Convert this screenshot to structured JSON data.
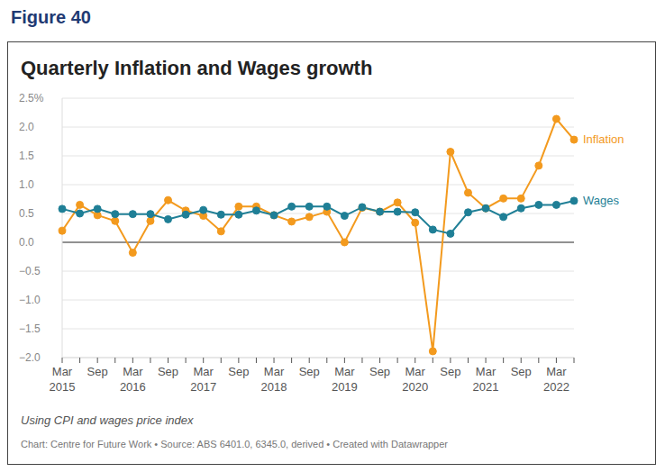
{
  "figure": "Figure 40",
  "chart_data": {
    "type": "line",
    "title": "Quarterly Inflation and Wages growth",
    "note": "Using CPI and wages price index",
    "source": "Chart: Centre for Future Work • Source: ABS 6401.0, 6345.0, derived • Created with Datawrapper",
    "categories": [
      "Mar 2015",
      null,
      "Sep",
      null,
      "Mar 2016",
      null,
      "Sep",
      null,
      "Mar 2017",
      null,
      "Sep",
      null,
      "Mar 2018",
      null,
      "Sep",
      null,
      "Mar 2019",
      null,
      "Sep",
      null,
      "Mar 2020",
      null,
      "Sep",
      null,
      "Mar 2021",
      null,
      "Sep",
      null,
      "Mar 2022",
      null
    ],
    "series": [
      {
        "name": "Inflation",
        "color": "#f39a1e",
        "marker": "circle",
        "values": [
          0.2,
          0.65,
          0.47,
          0.37,
          -0.18,
          0.37,
          0.73,
          0.55,
          0.46,
          0.19,
          0.62,
          0.62,
          0.47,
          0.36,
          0.44,
          0.53,
          0.0,
          0.6,
          0.53,
          0.69,
          0.34,
          -1.89,
          1.57,
          0.86,
          0.59,
          0.76,
          0.76,
          1.33,
          2.14,
          1.78
        ]
      },
      {
        "name": "Wages",
        "color": "#1f7f96",
        "marker": "circle",
        "values": [
          0.58,
          0.5,
          0.58,
          0.49,
          0.49,
          0.49,
          0.4,
          0.48,
          0.56,
          0.48,
          0.48,
          0.55,
          0.47,
          0.62,
          0.62,
          0.62,
          0.46,
          0.61,
          0.53,
          0.53,
          0.52,
          0.22,
          0.15,
          0.52,
          0.59,
          0.44,
          0.59,
          0.65,
          0.65,
          0.72
        ]
      }
    ],
    "ylim": [
      -2.0,
      2.5
    ],
    "yticks": [
      {
        "value": -2.0,
        "label": "−2.0"
      },
      {
        "value": -1.5,
        "label": "−1.5"
      },
      {
        "value": -1.0,
        "label": "−1.0"
      },
      {
        "value": -0.5,
        "label": "−0.5"
      },
      {
        "value": 0,
        "label": "0.0"
      },
      {
        "value": 0.5,
        "label": "0.5"
      },
      {
        "value": 1.0,
        "label": "1.0"
      },
      {
        "value": 1.5,
        "label": "1.5"
      },
      {
        "value": 2.0,
        "label": "2.0"
      },
      {
        "value": 2.5,
        "label": "2.5%"
      }
    ],
    "grid": true
  }
}
